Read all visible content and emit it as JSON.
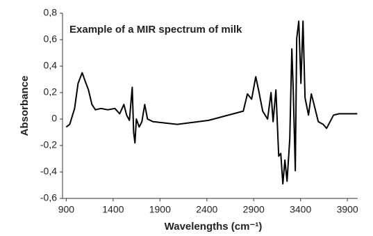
{
  "chart_data": {
    "type": "line",
    "title": "Example of a MIR spectrum of milk",
    "x_label": "Wavelengths (cm⁻¹)",
    "y_label": "Absorbance",
    "color": "#000000",
    "x": [
      900,
      937,
      989,
      1026,
      1070,
      1100,
      1137,
      1174,
      1211,
      1270,
      1344,
      1419,
      1470,
      1515,
      1544,
      1574,
      1604,
      1619,
      1633,
      1648,
      1678,
      1707,
      1737,
      1767,
      1826,
      2085,
      2419,
      2789,
      2833,
      2878,
      2922,
      2952,
      2996,
      3048,
      3085,
      3107,
      3137,
      3167,
      3189,
      3211,
      3233,
      3256,
      3285,
      3307,
      3322,
      3344,
      3359,
      3381,
      3404,
      3426,
      3448,
      3485,
      3515,
      3544,
      3589,
      3641,
      3678,
      3715,
      3752,
      3811,
      4005
    ],
    "values": [
      -0.06,
      -0.04,
      0.08,
      0.27,
      0.35,
      0.29,
      0.22,
      0.11,
      0.07,
      0.08,
      0.07,
      0.08,
      0.04,
      0.11,
      0.03,
      -0.01,
      0.24,
      -0.1,
      -0.18,
      0.0,
      -0.06,
      -0.02,
      0.11,
      0.0,
      -0.02,
      -0.04,
      -0.01,
      0.06,
      0.19,
      0.15,
      0.32,
      0.22,
      0.06,
      0.0,
      0.2,
      -0.02,
      0.22,
      -0.28,
      -0.26,
      -0.49,
      -0.31,
      -0.47,
      -0.15,
      0.53,
      0.22,
      -0.39,
      0.61,
      0.74,
      0.27,
      0.74,
      0.16,
      0.03,
      0.19,
      0.11,
      -0.02,
      -0.04,
      -0.07,
      -0.02,
      0.03,
      0.04,
      0.04
    ],
    "xlim": [
      860,
      4010
    ],
    "ylim": [
      -0.6,
      0.8
    ],
    "xticks": [
      900,
      1400,
      1900,
      2400,
      2900,
      3400,
      3900
    ],
    "yticks": [
      {
        "value": 0.8,
        "label": "0,8"
      },
      {
        "value": 0.6,
        "label": "0,6"
      },
      {
        "value": 0.4,
        "label": "0,4"
      },
      {
        "value": 0.2,
        "label": "0,2"
      },
      0,
      {
        "value": -0.2,
        "label": "-0,2"
      },
      {
        "value": -0.4,
        "label": "-0,4"
      },
      {
        "value": -0.6,
        "label": "-0,6"
      }
    ]
  }
}
